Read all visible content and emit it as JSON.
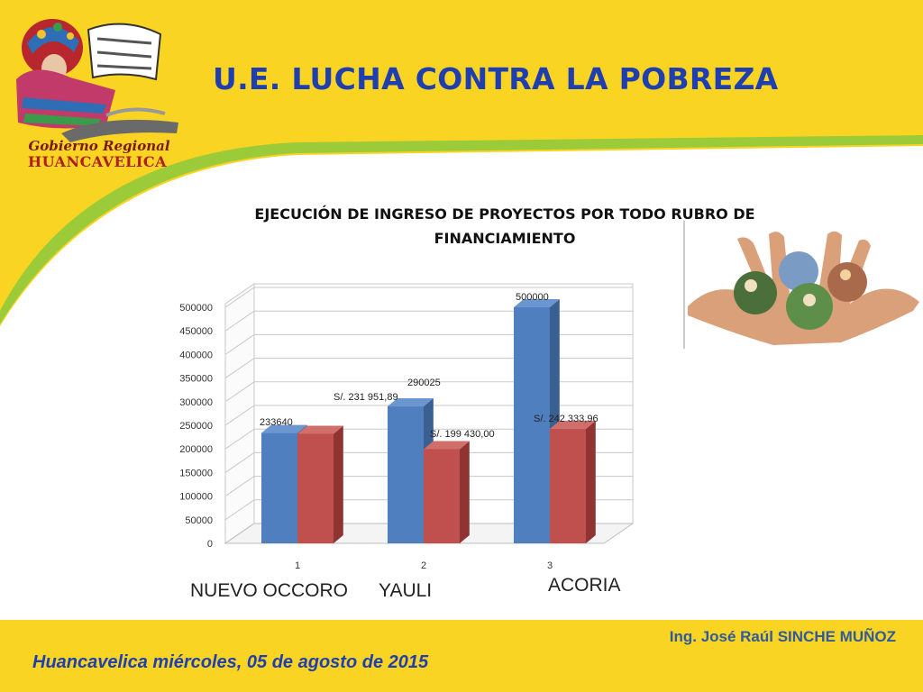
{
  "header": {
    "title": "U.E. LUCHA CONTRA LA POBREZA",
    "logo_line1": "Gobierno Regional",
    "logo_line2": "HUANCAVELICA"
  },
  "footer": {
    "author": "Ing. José Raúl SINCHE MUÑOZ",
    "date": "Huancavelica miércoles, 05 de agosto de 2015"
  },
  "colors": {
    "background": "#f9d422",
    "panel": "#ffffff",
    "swoosh": "#9ccb3a",
    "title": "#1f3fb0",
    "series1": "#4f7fbf",
    "series2": "#c0504d"
  },
  "chart_data": {
    "type": "bar",
    "title": "EJECUCIÓN DE INGRESO DE PROYECTOS POR TODO RUBRO DE FINANCIAMIENTO",
    "title_lines": [
      "EJECUCIÓN DE INGRESO DE PROYECTOS POR TODO RUBRO DE",
      "FINANCIAMIENTO"
    ],
    "categories": [
      "1",
      "2",
      "3"
    ],
    "category_names": [
      "NUEVO OCCORO",
      "YAULI",
      "ACORIA"
    ],
    "ylim": [
      0,
      500000
    ],
    "yticks": [
      0,
      50000,
      100000,
      150000,
      200000,
      250000,
      300000,
      350000,
      400000,
      450000,
      500000
    ],
    "grid": true,
    "style": "3d",
    "series": [
      {
        "values": [
          233640,
          290025,
          500000
        ],
        "labels": [
          "233640",
          "290025",
          "500000"
        ],
        "color": "#4f7fbf"
      },
      {
        "values": [
          231951.89,
          199430.0,
          242333.96
        ],
        "labels": [
          "S/. 231 951,89",
          "S/. 199 430,00",
          "S/. 242 333,96"
        ],
        "color": "#c0504d"
      }
    ]
  }
}
